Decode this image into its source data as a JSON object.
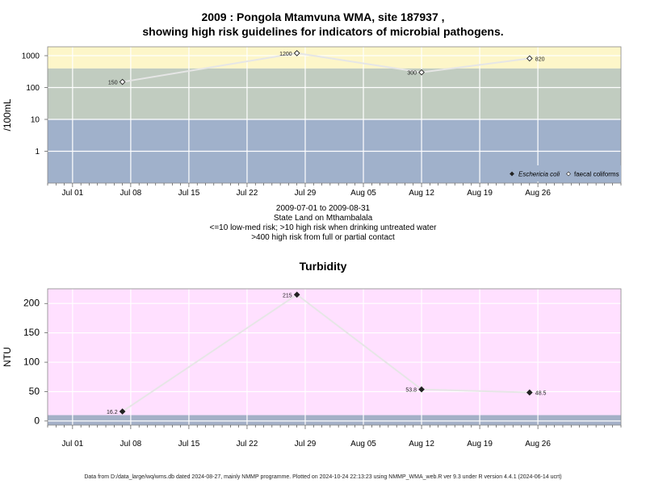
{
  "title_line1": "2009 : Pongola Mtamvuna WMA, site 187937 ,",
  "title_line2": "showing high risk guidelines for indicators of microbial pathogens.",
  "subtitle_lines": [
    "2009-07-01 to 2009-08-31",
    "State Land on Mthambalala",
    "<=10 low-med risk; >10 high risk when drinking untreated water",
    ">400 high risk from full or partial contact"
  ],
  "footer": "Data from D:/data_large/wq/wms.db dated 2024-08-27, mainly NMMP programme. Plotted on 2024-10-24 22:13:23 using NMMP_WMA_web.R ver 9.3 under R version 4.4.1 (2024-06-14 ucrt)",
  "x_tick_labels": [
    "Jul 01",
    "Jul 08",
    "Jul 15",
    "Jul 22",
    "Jul 29",
    "Aug 05",
    "Aug 12",
    "Aug 19",
    "Aug 26"
  ],
  "colors": {
    "band_low": "#a0b1cb",
    "band_mid": "#c1ccc0",
    "band_high": "#fdf6c9",
    "turbidity_bg": "#ffe0ff",
    "turbidity_band": "#a4b0c7",
    "grid": "#ffffff",
    "line": "#e6e6e6"
  },
  "chart_data": [
    {
      "type": "line",
      "scale": "log",
      "ylabel": "/100mL",
      "x_axis": "date",
      "xlim": [
        "2009-06-28",
        "2009-09-05"
      ],
      "ylim": [
        0.1,
        1900
      ],
      "y_ticks": [
        1,
        10,
        100,
        1000
      ],
      "y_tick_labels": [
        "1",
        "10",
        "100",
        "1000"
      ],
      "risk_bands": [
        {
          "from": 0.1,
          "to": 10
        },
        {
          "from": 10,
          "to": 400
        },
        {
          "from": 400,
          "to": 1900
        }
      ],
      "legend": {
        "position": "bottom-right",
        "entries": [
          "Eschericia coli",
          "faecal coliforms"
        ]
      },
      "series": [
        {
          "name": "faecal coliforms",
          "marker": "open-diamond",
          "points": [
            {
              "x": "2009-07-07",
              "y": 150,
              "label": "150"
            },
            {
              "x": "2009-07-28",
              "y": 1200,
              "label": "1200"
            },
            {
              "x": "2009-08-12",
              "y": 300,
              "label": "300"
            },
            {
              "x": "2009-08-25",
              "y": 820,
              "label": "820"
            }
          ]
        }
      ]
    },
    {
      "type": "line",
      "title": "Turbidity",
      "ylabel": "NTU",
      "x_axis": "date",
      "xlim": [
        "2009-06-28",
        "2009-09-05"
      ],
      "ylim": [
        -7,
        225
      ],
      "y_ticks": [
        0,
        50,
        100,
        150,
        200
      ],
      "y_tick_labels": [
        "0",
        "50",
        "100",
        "150",
        "200"
      ],
      "bands": [
        {
          "from": -7,
          "to": 10
        }
      ],
      "series": [
        {
          "name": "Turbidity",
          "marker": "filled-diamond",
          "points": [
            {
              "x": "2009-07-07",
              "y": 16.2,
              "label": "16.2"
            },
            {
              "x": "2009-07-28",
              "y": 215,
              "label": "215"
            },
            {
              "x": "2009-08-12",
              "y": 53.8,
              "label": "53.8"
            },
            {
              "x": "2009-08-25",
              "y": 48.5,
              "label": "48.5"
            }
          ]
        }
      ]
    }
  ]
}
